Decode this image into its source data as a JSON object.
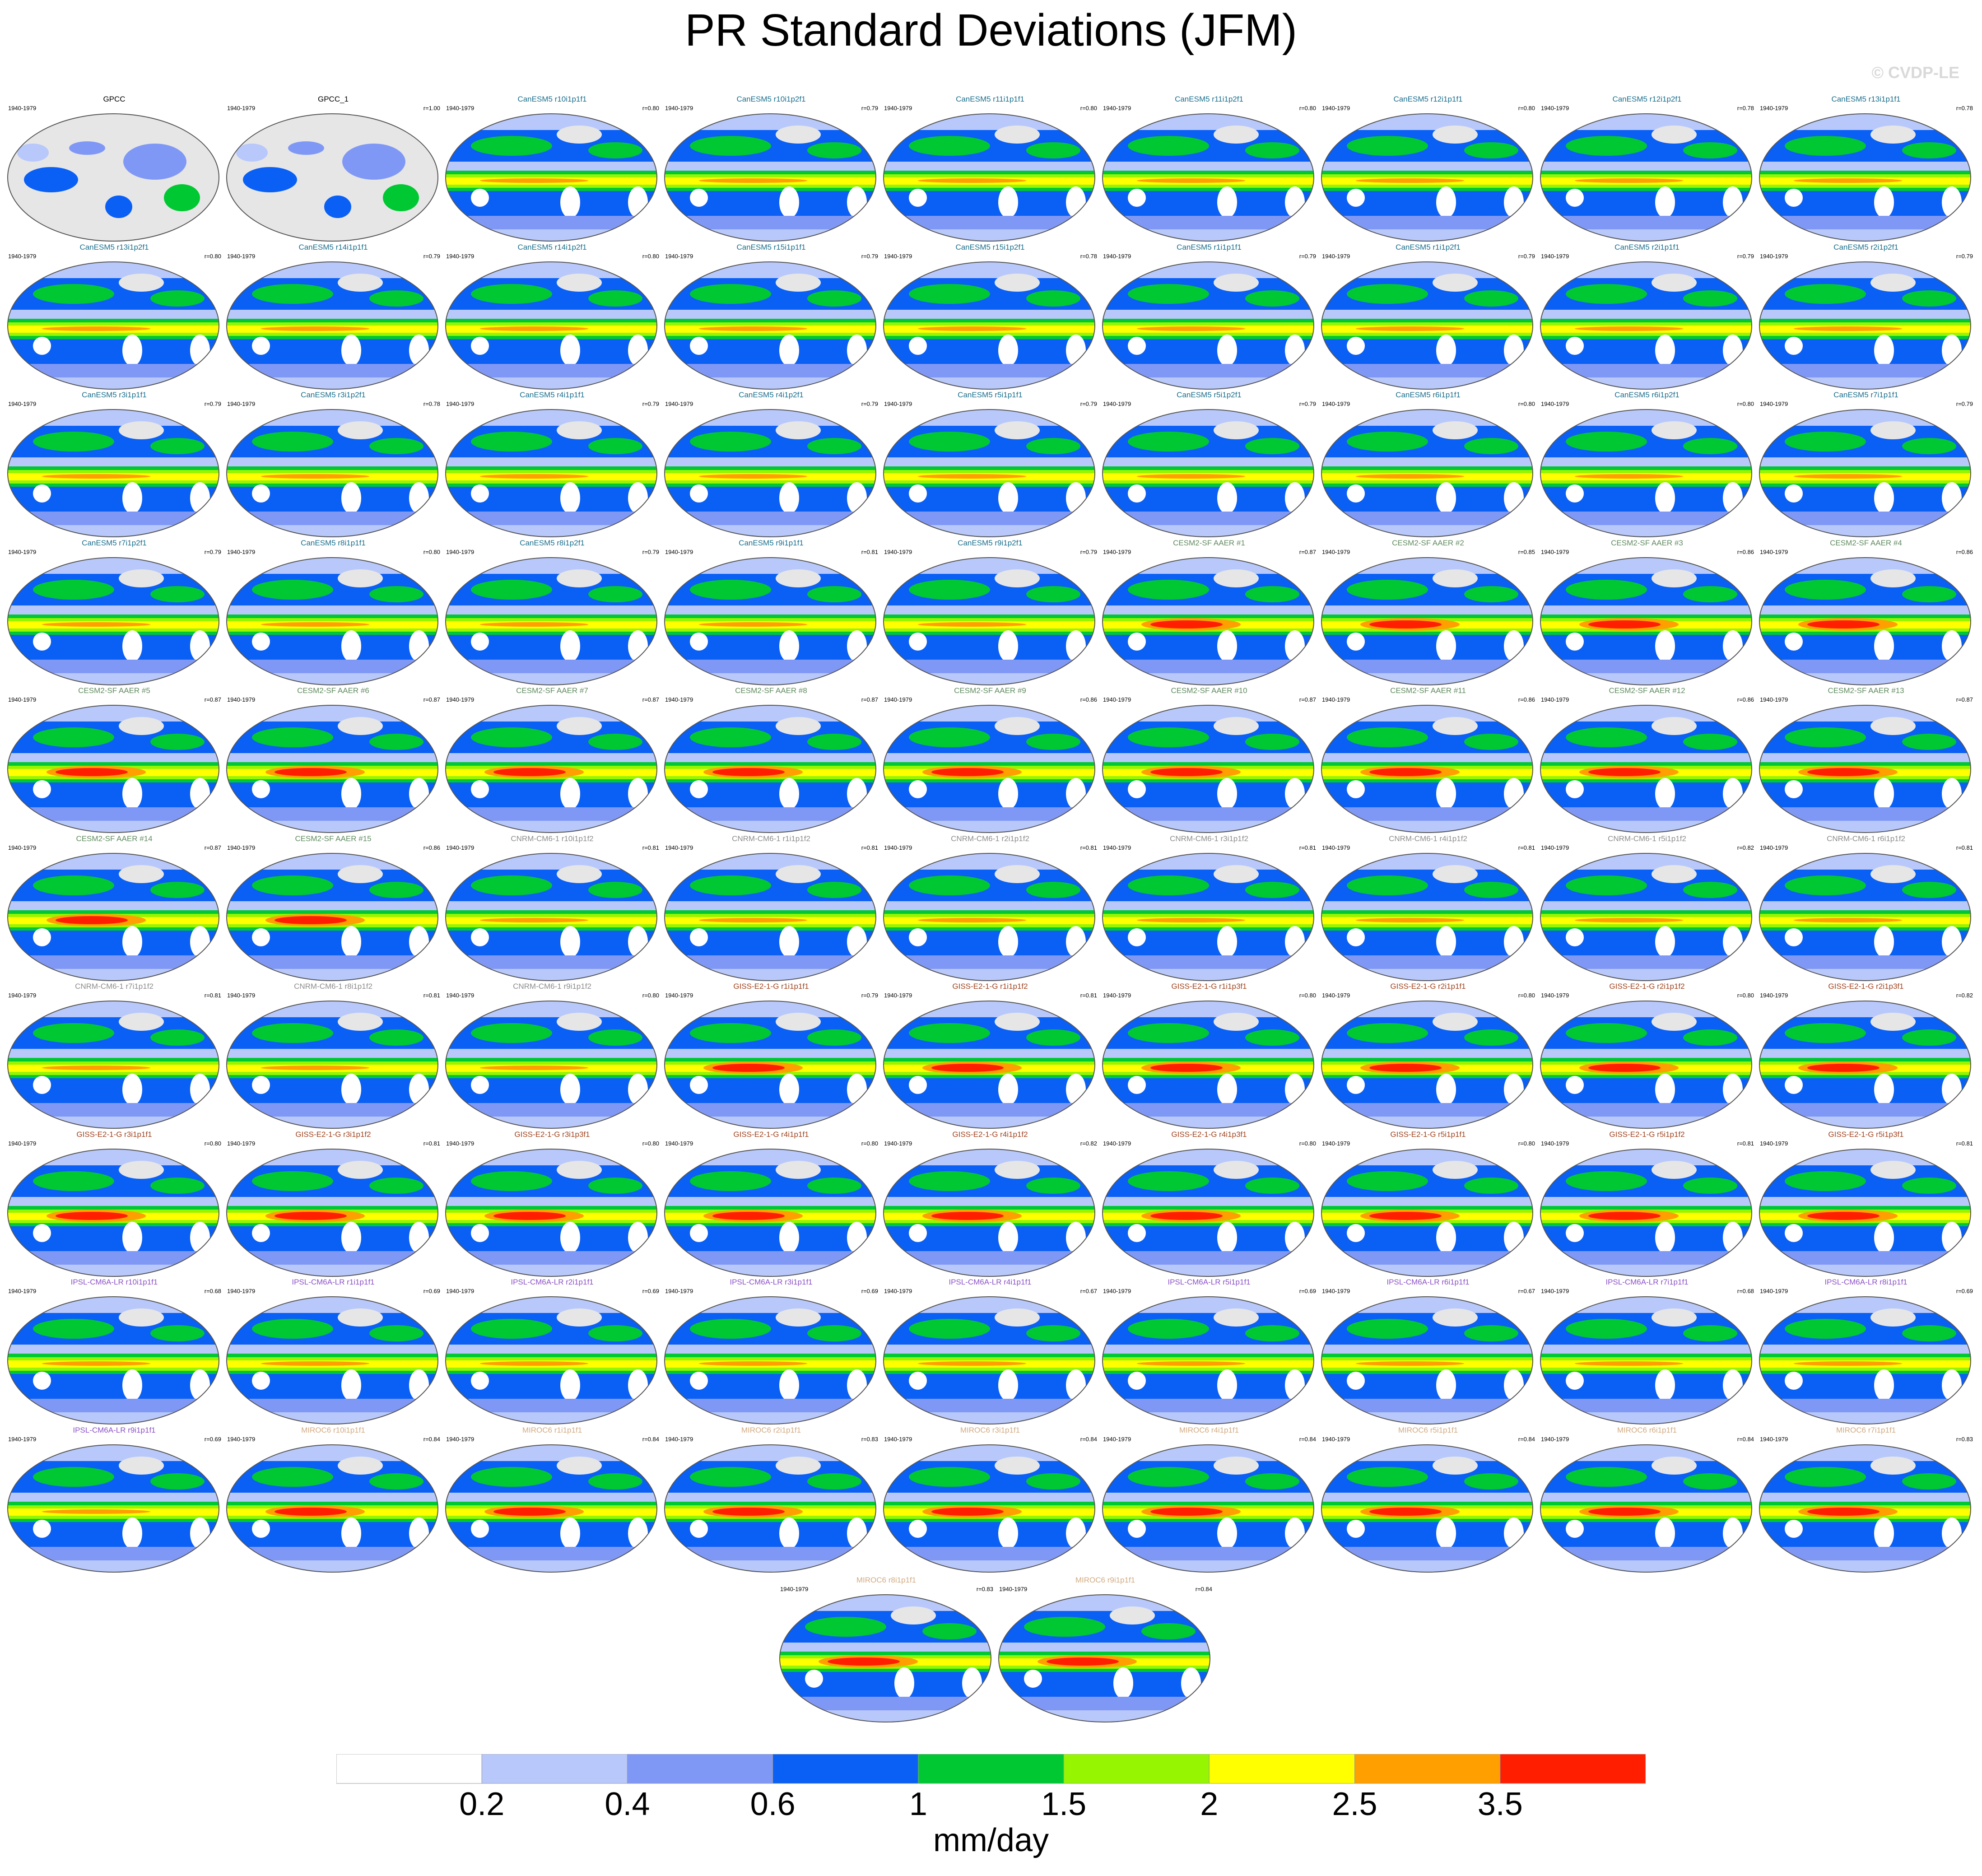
{
  "title": "PR Standard Deviations (JFM)",
  "watermark": "© CVDP-LE",
  "chart_data": {
    "type": "heatmap",
    "title": "PR Standard Deviations (JFM)",
    "projection": "global map panels",
    "period": "1940-1979",
    "colorbar": {
      "units": "mm/day",
      "levels": [
        "0.2",
        "0.4",
        "0.6",
        "1",
        "1.5",
        "2",
        "2.5",
        "3.5"
      ],
      "colors": [
        "#ffffff",
        "#b8c8fa",
        "#8098f5",
        "#0a5ff5",
        "#00c832",
        "#96f500",
        "#ffff00",
        "#ffa000",
        "#ff1e00"
      ]
    },
    "group_colors": {
      "obs": "#000000",
      "CanESM5": "#1a6e8c",
      "CESM2-SF AAER": "#5f8a5f",
      "CNRM-CM6-1": "#8c8c8c",
      "GISS-E2-1-G": "#a0421e",
      "IPSL-CM6A-LR": "#8c50c8",
      "MIROC6": "#d2aa82"
    },
    "panels": [
      {
        "name": "GPCC",
        "group": "obs",
        "period": "1940-1979",
        "r": ""
      },
      {
        "name": "GPCC_1",
        "group": "obs",
        "period": "1940-1979",
        "r": "r=1.00"
      },
      {
        "name": "CanESM5 r10i1p1f1",
        "group": "CanESM5",
        "period": "1940-1979",
        "r": "r=0.80"
      },
      {
        "name": "CanESM5 r10i1p2f1",
        "group": "CanESM5",
        "period": "1940-1979",
        "r": "r=0.79"
      },
      {
        "name": "CanESM5 r11i1p1f1",
        "group": "CanESM5",
        "period": "1940-1979",
        "r": "r=0.80"
      },
      {
        "name": "CanESM5 r11i1p2f1",
        "group": "CanESM5",
        "period": "1940-1979",
        "r": "r=0.80"
      },
      {
        "name": "CanESM5 r12i1p1f1",
        "group": "CanESM5",
        "period": "1940-1979",
        "r": "r=0.80"
      },
      {
        "name": "CanESM5 r12i1p2f1",
        "group": "CanESM5",
        "period": "1940-1979",
        "r": "r=0.78"
      },
      {
        "name": "CanESM5 r13i1p1f1",
        "group": "CanESM5",
        "period": "1940-1979",
        "r": "r=0.78"
      },
      {
        "name": "CanESM5 r13i1p2f1",
        "group": "CanESM5",
        "period": "1940-1979",
        "r": "r=0.80"
      },
      {
        "name": "CanESM5 r14i1p1f1",
        "group": "CanESM5",
        "period": "1940-1979",
        "r": "r=0.79"
      },
      {
        "name": "CanESM5 r14i1p2f1",
        "group": "CanESM5",
        "period": "1940-1979",
        "r": "r=0.80"
      },
      {
        "name": "CanESM5 r15i1p1f1",
        "group": "CanESM5",
        "period": "1940-1979",
        "r": "r=0.79"
      },
      {
        "name": "CanESM5 r15i1p2f1",
        "group": "CanESM5",
        "period": "1940-1979",
        "r": "r=0.78"
      },
      {
        "name": "CanESM5 r1i1p1f1",
        "group": "CanESM5",
        "period": "1940-1979",
        "r": "r=0.79"
      },
      {
        "name": "CanESM5 r1i1p2f1",
        "group": "CanESM5",
        "period": "1940-1979",
        "r": "r=0.79"
      },
      {
        "name": "CanESM5 r2i1p1f1",
        "group": "CanESM5",
        "period": "1940-1979",
        "r": "r=0.79"
      },
      {
        "name": "CanESM5 r2i1p2f1",
        "group": "CanESM5",
        "period": "1940-1979",
        "r": "r=0.79"
      },
      {
        "name": "CanESM5 r3i1p1f1",
        "group": "CanESM5",
        "period": "1940-1979",
        "r": "r=0.79"
      },
      {
        "name": "CanESM5 r3i1p2f1",
        "group": "CanESM5",
        "period": "1940-1979",
        "r": "r=0.78"
      },
      {
        "name": "CanESM5 r4i1p1f1",
        "group": "CanESM5",
        "period": "1940-1979",
        "r": "r=0.79"
      },
      {
        "name": "CanESM5 r4i1p2f1",
        "group": "CanESM5",
        "period": "1940-1979",
        "r": "r=0.79"
      },
      {
        "name": "CanESM5 r5i1p1f1",
        "group": "CanESM5",
        "period": "1940-1979",
        "r": "r=0.79"
      },
      {
        "name": "CanESM5 r5i1p2f1",
        "group": "CanESM5",
        "period": "1940-1979",
        "r": "r=0.79"
      },
      {
        "name": "CanESM5 r6i1p1f1",
        "group": "CanESM5",
        "period": "1940-1979",
        "r": "r=0.80"
      },
      {
        "name": "CanESM5 r6i1p2f1",
        "group": "CanESM5",
        "period": "1940-1979",
        "r": "r=0.80"
      },
      {
        "name": "CanESM5 r7i1p1f1",
        "group": "CanESM5",
        "period": "1940-1979",
        "r": "r=0.79"
      },
      {
        "name": "CanESM5 r7i1p2f1",
        "group": "CanESM5",
        "period": "1940-1979",
        "r": "r=0.79"
      },
      {
        "name": "CanESM5 r8i1p1f1",
        "group": "CanESM5",
        "period": "1940-1979",
        "r": "r=0.80"
      },
      {
        "name": "CanESM5 r8i1p2f1",
        "group": "CanESM5",
        "period": "1940-1979",
        "r": "r=0.79"
      },
      {
        "name": "CanESM5 r9i1p1f1",
        "group": "CanESM5",
        "period": "1940-1979",
        "r": "r=0.81"
      },
      {
        "name": "CanESM5 r9i1p2f1",
        "group": "CanESM5",
        "period": "1940-1979",
        "r": "r=0.79"
      },
      {
        "name": "CESM2-SF AAER #1",
        "group": "CESM2-SF AAER",
        "period": "1940-1979",
        "r": "r=0.87"
      },
      {
        "name": "CESM2-SF AAER #2",
        "group": "CESM2-SF AAER",
        "period": "1940-1979",
        "r": "r=0.85"
      },
      {
        "name": "CESM2-SF AAER #3",
        "group": "CESM2-SF AAER",
        "period": "1940-1979",
        "r": "r=0.86"
      },
      {
        "name": "CESM2-SF AAER #4",
        "group": "CESM2-SF AAER",
        "period": "1940-1979",
        "r": "r=0.86"
      },
      {
        "name": "CESM2-SF AAER #5",
        "group": "CESM2-SF AAER",
        "period": "1940-1979",
        "r": "r=0.87"
      },
      {
        "name": "CESM2-SF AAER #6",
        "group": "CESM2-SF AAER",
        "period": "1940-1979",
        "r": "r=0.87"
      },
      {
        "name": "CESM2-SF AAER #7",
        "group": "CESM2-SF AAER",
        "period": "1940-1979",
        "r": "r=0.87"
      },
      {
        "name": "CESM2-SF AAER #8",
        "group": "CESM2-SF AAER",
        "period": "1940-1979",
        "r": "r=0.87"
      },
      {
        "name": "CESM2-SF AAER #9",
        "group": "CESM2-SF AAER",
        "period": "1940-1979",
        "r": "r=0.86"
      },
      {
        "name": "CESM2-SF AAER #10",
        "group": "CESM2-SF AAER",
        "period": "1940-1979",
        "r": "r=0.87"
      },
      {
        "name": "CESM2-SF AAER #11",
        "group": "CESM2-SF AAER",
        "period": "1940-1979",
        "r": "r=0.86"
      },
      {
        "name": "CESM2-SF AAER #12",
        "group": "CESM2-SF AAER",
        "period": "1940-1979",
        "r": "r=0.86"
      },
      {
        "name": "CESM2-SF AAER #13",
        "group": "CESM2-SF AAER",
        "period": "1940-1979",
        "r": "r=0.87"
      },
      {
        "name": "CESM2-SF AAER #14",
        "group": "CESM2-SF AAER",
        "period": "1940-1979",
        "r": "r=0.87"
      },
      {
        "name": "CESM2-SF AAER #15",
        "group": "CESM2-SF AAER",
        "period": "1940-1979",
        "r": "r=0.86"
      },
      {
        "name": "CNRM-CM6-1 r10i1p1f2",
        "group": "CNRM-CM6-1",
        "period": "1940-1979",
        "r": "r=0.81"
      },
      {
        "name": "CNRM-CM6-1 r1i1p1f2",
        "group": "CNRM-CM6-1",
        "period": "1940-1979",
        "r": "r=0.81"
      },
      {
        "name": "CNRM-CM6-1 r2i1p1f2",
        "group": "CNRM-CM6-1",
        "period": "1940-1979",
        "r": "r=0.81"
      },
      {
        "name": "CNRM-CM6-1 r3i1p1f2",
        "group": "CNRM-CM6-1",
        "period": "1940-1979",
        "r": "r=0.81"
      },
      {
        "name": "CNRM-CM6-1 r4i1p1f2",
        "group": "CNRM-CM6-1",
        "period": "1940-1979",
        "r": "r=0.81"
      },
      {
        "name": "CNRM-CM6-1 r5i1p1f2",
        "group": "CNRM-CM6-1",
        "period": "1940-1979",
        "r": "r=0.82"
      },
      {
        "name": "CNRM-CM6-1 r6i1p1f2",
        "group": "CNRM-CM6-1",
        "period": "1940-1979",
        "r": "r=0.81"
      },
      {
        "name": "CNRM-CM6-1 r7i1p1f2",
        "group": "CNRM-CM6-1",
        "period": "1940-1979",
        "r": "r=0.81"
      },
      {
        "name": "CNRM-CM6-1 r8i1p1f2",
        "group": "CNRM-CM6-1",
        "period": "1940-1979",
        "r": "r=0.81"
      },
      {
        "name": "CNRM-CM6-1 r9i1p1f2",
        "group": "CNRM-CM6-1",
        "period": "1940-1979",
        "r": "r=0.80"
      },
      {
        "name": "GISS-E2-1-G r1i1p1f1",
        "group": "GISS-E2-1-G",
        "period": "1940-1979",
        "r": "r=0.79"
      },
      {
        "name": "GISS-E2-1-G r1i1p1f2",
        "group": "GISS-E2-1-G",
        "period": "1940-1979",
        "r": "r=0.81"
      },
      {
        "name": "GISS-E2-1-G r1i1p3f1",
        "group": "GISS-E2-1-G",
        "period": "1940-1979",
        "r": "r=0.80"
      },
      {
        "name": "GISS-E2-1-G r2i1p1f1",
        "group": "GISS-E2-1-G",
        "period": "1940-1979",
        "r": "r=0.80"
      },
      {
        "name": "GISS-E2-1-G r2i1p1f2",
        "group": "GISS-E2-1-G",
        "period": "1940-1979",
        "r": "r=0.80"
      },
      {
        "name": "GISS-E2-1-G r2i1p3f1",
        "group": "GISS-E2-1-G",
        "period": "1940-1979",
        "r": "r=0.82"
      },
      {
        "name": "GISS-E2-1-G r3i1p1f1",
        "group": "GISS-E2-1-G",
        "period": "1940-1979",
        "r": "r=0.80"
      },
      {
        "name": "GISS-E2-1-G r3i1p1f2",
        "group": "GISS-E2-1-G",
        "period": "1940-1979",
        "r": "r=0.81"
      },
      {
        "name": "GISS-E2-1-G r3i1p3f1",
        "group": "GISS-E2-1-G",
        "period": "1940-1979",
        "r": "r=0.80"
      },
      {
        "name": "GISS-E2-1-G r4i1p1f1",
        "group": "GISS-E2-1-G",
        "period": "1940-1979",
        "r": "r=0.80"
      },
      {
        "name": "GISS-E2-1-G r4i1p1f2",
        "group": "GISS-E2-1-G",
        "period": "1940-1979",
        "r": "r=0.82"
      },
      {
        "name": "GISS-E2-1-G r4i1p3f1",
        "group": "GISS-E2-1-G",
        "period": "1940-1979",
        "r": "r=0.80"
      },
      {
        "name": "GISS-E2-1-G r5i1p1f1",
        "group": "GISS-E2-1-G",
        "period": "1940-1979",
        "r": "r=0.80"
      },
      {
        "name": "GISS-E2-1-G r5i1p1f2",
        "group": "GISS-E2-1-G",
        "period": "1940-1979",
        "r": "r=0.81"
      },
      {
        "name": "GISS-E2-1-G r5i1p3f1",
        "group": "GISS-E2-1-G",
        "period": "1940-1979",
        "r": "r=0.81"
      },
      {
        "name": "IPSL-CM6A-LR r10i1p1f1",
        "group": "IPSL-CM6A-LR",
        "period": "1940-1979",
        "r": "r=0.68"
      },
      {
        "name": "IPSL-CM6A-LR r1i1p1f1",
        "group": "IPSL-CM6A-LR",
        "period": "1940-1979",
        "r": "r=0.69"
      },
      {
        "name": "IPSL-CM6A-LR r2i1p1f1",
        "group": "IPSL-CM6A-LR",
        "period": "1940-1979",
        "r": "r=0.69"
      },
      {
        "name": "IPSL-CM6A-LR r3i1p1f1",
        "group": "IPSL-CM6A-LR",
        "period": "1940-1979",
        "r": "r=0.69"
      },
      {
        "name": "IPSL-CM6A-LR r4i1p1f1",
        "group": "IPSL-CM6A-LR",
        "period": "1940-1979",
        "r": "r=0.67"
      },
      {
        "name": "IPSL-CM6A-LR r5i1p1f1",
        "group": "IPSL-CM6A-LR",
        "period": "1940-1979",
        "r": "r=0.69"
      },
      {
        "name": "IPSL-CM6A-LR r6i1p1f1",
        "group": "IPSL-CM6A-LR",
        "period": "1940-1979",
        "r": "r=0.67"
      },
      {
        "name": "IPSL-CM6A-LR r7i1p1f1",
        "group": "IPSL-CM6A-LR",
        "period": "1940-1979",
        "r": "r=0.68"
      },
      {
        "name": "IPSL-CM6A-LR r8i1p1f1",
        "group": "IPSL-CM6A-LR",
        "period": "1940-1979",
        "r": "r=0.69"
      },
      {
        "name": "IPSL-CM6A-LR r9i1p1f1",
        "group": "IPSL-CM6A-LR",
        "period": "1940-1979",
        "r": "r=0.69"
      },
      {
        "name": "MIROC6 r10i1p1f1",
        "group": "MIROC6",
        "period": "1940-1979",
        "r": "r=0.84"
      },
      {
        "name": "MIROC6 r1i1p1f1",
        "group": "MIROC6",
        "period": "1940-1979",
        "r": "r=0.84"
      },
      {
        "name": "MIROC6 r2i1p1f1",
        "group": "MIROC6",
        "period": "1940-1979",
        "r": "r=0.83"
      },
      {
        "name": "MIROC6 r3i1p1f1",
        "group": "MIROC6",
        "period": "1940-1979",
        "r": "r=0.84"
      },
      {
        "name": "MIROC6 r4i1p1f1",
        "group": "MIROC6",
        "period": "1940-1979",
        "r": "r=0.84"
      },
      {
        "name": "MIROC6 r5i1p1f1",
        "group": "MIROC6",
        "period": "1940-1979",
        "r": "r=0.84"
      },
      {
        "name": "MIROC6 r6i1p1f1",
        "group": "MIROC6",
        "period": "1940-1979",
        "r": "r=0.84"
      },
      {
        "name": "MIROC6 r7i1p1f1",
        "group": "MIROC6",
        "period": "1940-1979",
        "r": "r=0.83"
      },
      {
        "name": "MIROC6 r8i1p1f1",
        "group": "MIROC6",
        "period": "1940-1979",
        "r": "r=0.83"
      },
      {
        "name": "MIROC6 r9i1p1f1",
        "group": "MIROC6",
        "period": "1940-1979",
        "r": "r=0.84"
      }
    ]
  }
}
